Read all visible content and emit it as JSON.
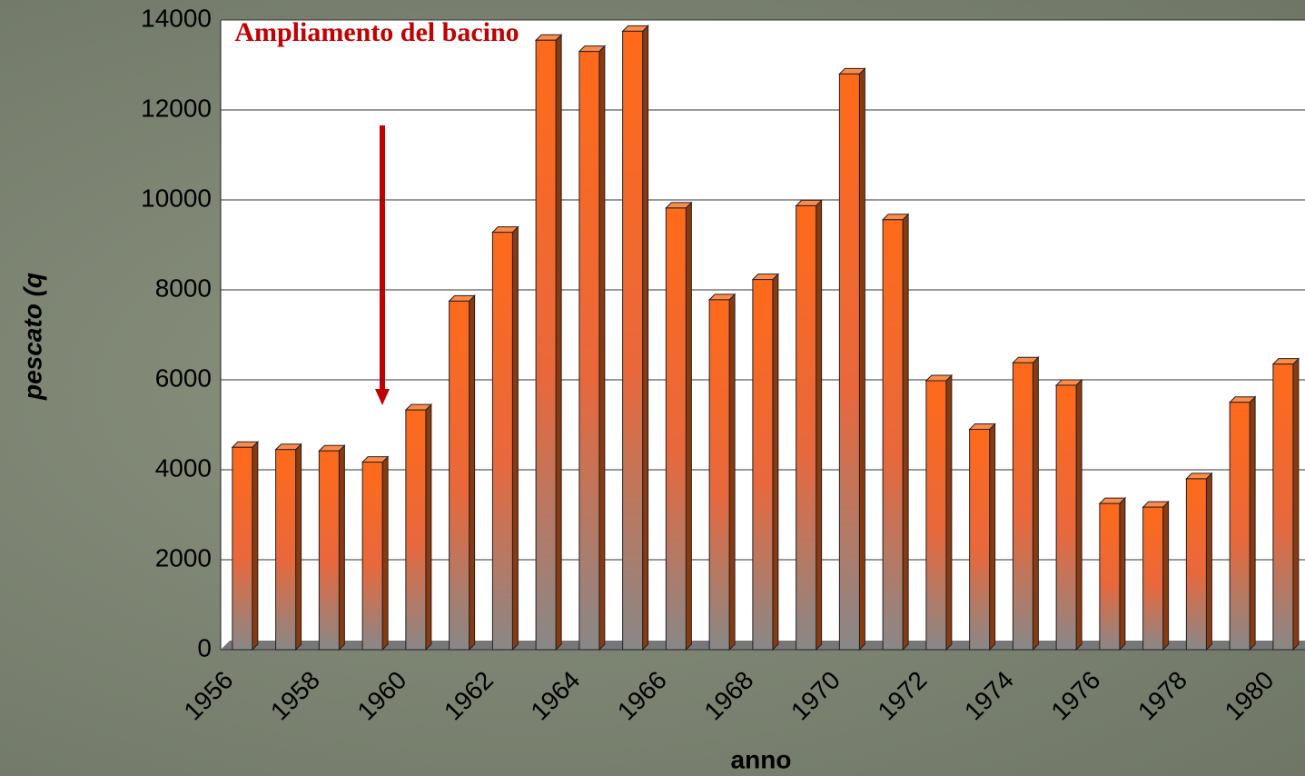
{
  "chart_data": {
    "type": "bar",
    "annotation": "Ampliamento del bacino",
    "x_label": "anno",
    "y_label": "pescato (q",
    "categories": [
      "1956",
      null,
      "1958",
      null,
      "1960",
      null,
      "1962",
      null,
      "1964",
      null,
      "1966",
      null,
      "1968",
      null,
      "1970",
      null,
      "1972",
      null,
      "1974",
      null,
      "1976",
      null,
      "1978",
      null,
      "1980"
    ],
    "values": [
      4500,
      4450,
      4420,
      4170,
      5330,
      7750,
      9280,
      13550,
      13300,
      13750,
      9820,
      7780,
      8230,
      9870,
      12800,
      9560,
      5980,
      4900,
      6380,
      5880,
      3250,
      3170,
      3800,
      5500,
      6350
    ],
    "color": "#ff6a1a",
    "ylim": [
      0,
      14000
    ],
    "yticks": [
      0,
      2000,
      4000,
      6000,
      8000,
      10000,
      12000,
      14000
    ],
    "grid": true
  }
}
